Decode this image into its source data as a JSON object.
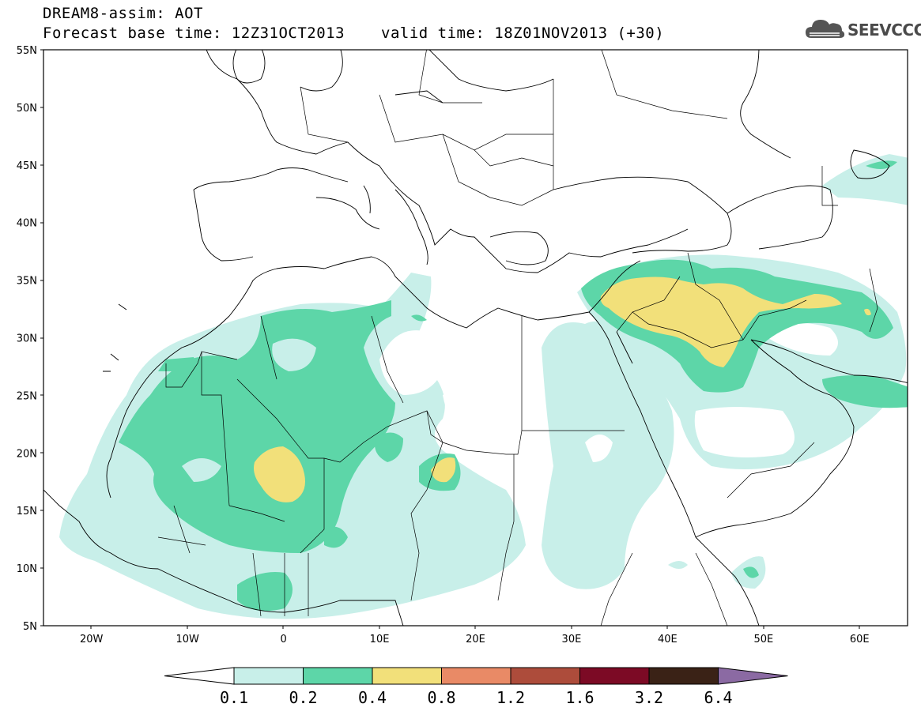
{
  "header": {
    "line1": "DREAM8-assim: AOT",
    "line2": "Forecast base time: 12Z31OCT2013",
    "valid": "valid time: 18Z01NOV2013 (+30)"
  },
  "logo": {
    "text": "SEEVCCC",
    "icon": "cloud-icon"
  },
  "map": {
    "lat_labels": [
      "55N",
      "50N",
      "45N",
      "40N",
      "35N",
      "30N",
      "25N",
      "20N",
      "15N",
      "10N",
      "5N"
    ],
    "lon_labels": [
      "20W",
      "10W",
      "0",
      "10E",
      "20E",
      "30E",
      "40E",
      "50E",
      "60E"
    ],
    "extent": {
      "lon": [
        -25,
        65
      ],
      "lat": [
        5,
        55
      ]
    }
  },
  "colorbar": {
    "labels": [
      "0.1",
      "0.2",
      "0.4",
      "0.8",
      "1.2",
      "1.6",
      "3.2",
      "6.4"
    ],
    "colors": [
      "#ffffff",
      "#c8efe9",
      "#5dd6a8",
      "#f2e07a",
      "#e98a66",
      "#ad4c3b",
      "#7c0a25",
      "#3a2216",
      "#8b6aa3"
    ]
  }
}
